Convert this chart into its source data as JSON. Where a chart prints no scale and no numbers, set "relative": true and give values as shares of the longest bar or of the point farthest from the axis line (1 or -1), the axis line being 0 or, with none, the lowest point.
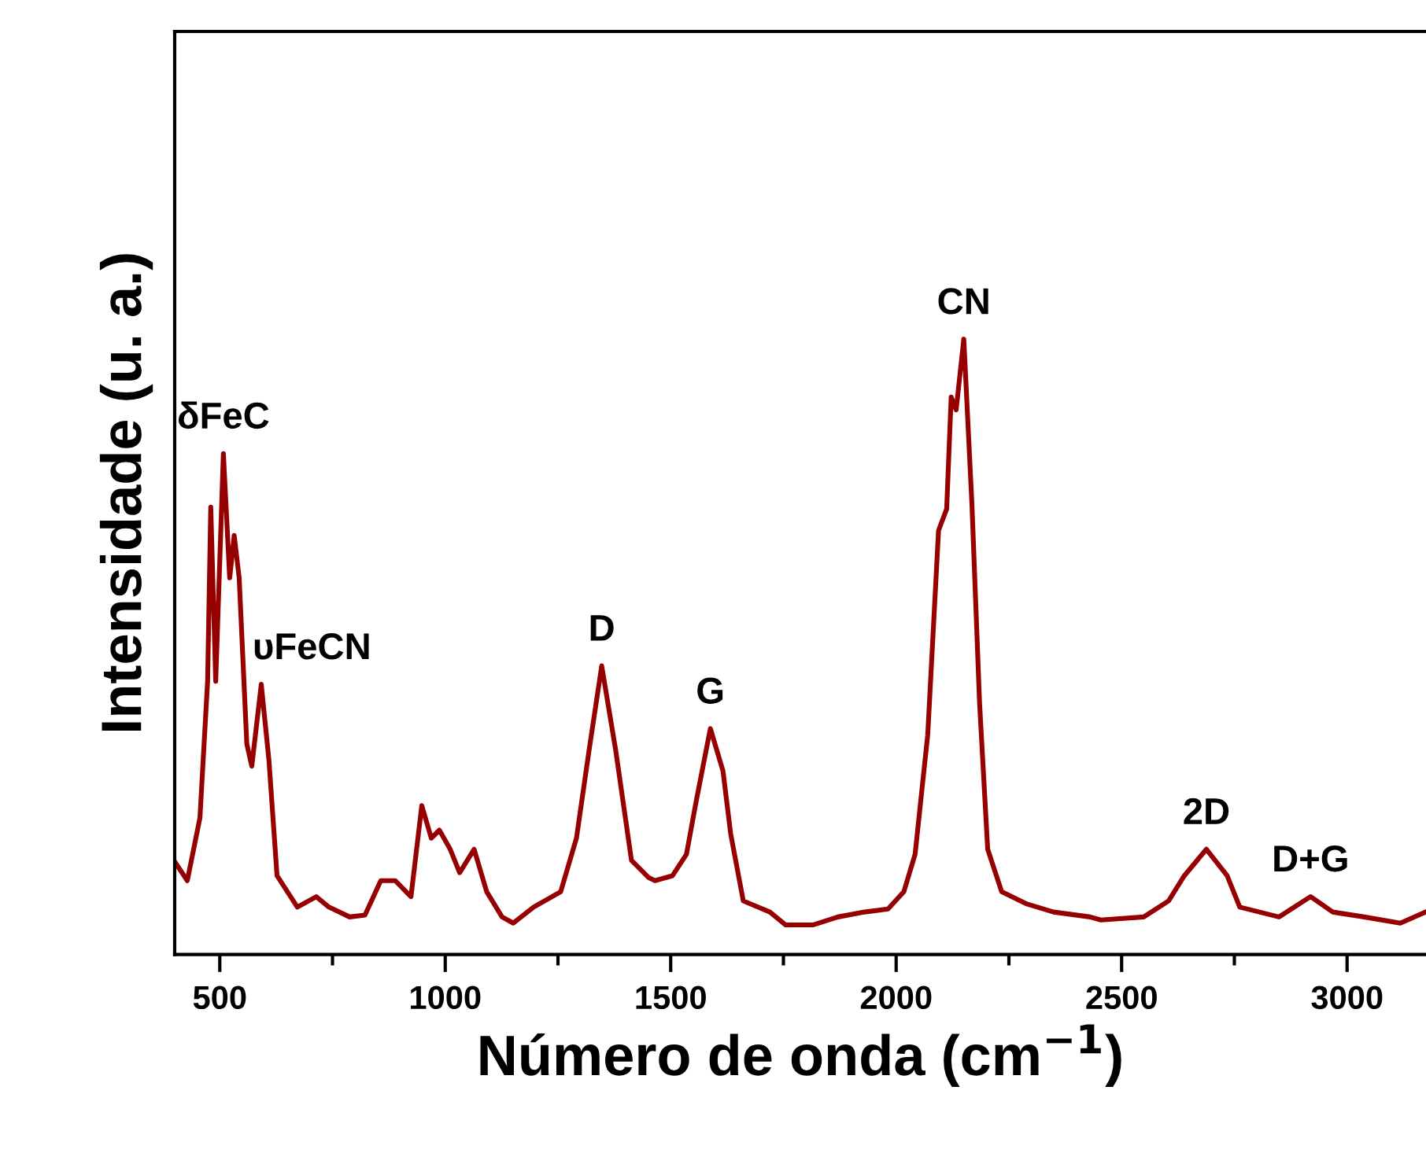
{
  "chart_data": {
    "type": "line",
    "relative": true,
    "xlabel": "Número de onda (cm$^{−1}$)",
    "ylabel": "Intensidade (u. a.)",
    "xlim": [
      400,
      3175
    ],
    "xticks": [
      500,
      {
        "value": 750,
        "label": null
      },
      1000,
      {
        "value": 1250,
        "label": null
      },
      1500,
      {
        "value": 1750,
        "label": null
      },
      2000,
      {
        "value": 2250,
        "label": null
      },
      2500,
      {
        "value": 2750,
        "label": null
      },
      3000
    ],
    "grid": false,
    "legend": false,
    "marker": "none",
    "line_style": "solid",
    "series": [
      {
        "color": "#960000",
        "x": [
          400,
          428,
          456,
          473,
          480,
          491,
          508,
          522,
          532,
          543,
          560,
          571,
          592,
          609,
          627,
          672,
          714,
          742,
          788,
          822,
          857,
          889,
          924,
          948,
          969,
          987,
          1011,
          1032,
          1064,
          1092,
          1126,
          1151,
          1196,
          1256,
          1291,
          1319,
          1347,
          1378,
          1413,
          1451,
          1465,
          1504,
          1535,
          1556,
          1588,
          1616,
          1633,
          1661,
          1720,
          1755,
          1815,
          1871,
          1930,
          1982,
          2017,
          2042,
          2070,
          2094,
          2112,
          2122,
          2133,
          2150,
          2168,
          2185,
          2203,
          2234,
          2290,
          2349,
          2430,
          2454,
          2549,
          2604,
          2639,
          2688,
          2734,
          2762,
          2849,
          2919,
          2968,
          3038,
          3118,
          3174
        ],
        "values": [
          0.151,
          0.12,
          0.222,
          0.444,
          0.727,
          0.444,
          0.814,
          0.612,
          0.681,
          0.612,
          0.342,
          0.306,
          0.439,
          0.316,
          0.128,
          0.077,
          0.094,
          0.077,
          0.061,
          0.064,
          0.12,
          0.12,
          0.094,
          0.242,
          0.189,
          0.202,
          0.171,
          0.133,
          0.171,
          0.102,
          0.061,
          0.051,
          0.077,
          0.102,
          0.189,
          0.332,
          0.469,
          0.332,
          0.153,
          0.125,
          0.12,
          0.128,
          0.163,
          0.247,
          0.367,
          0.298,
          0.196,
          0.087,
          0.069,
          0.048,
          0.048,
          0.061,
          0.069,
          0.074,
          0.102,
          0.163,
          0.357,
          0.689,
          0.724,
          0.906,
          0.885,
          1.0,
          0.732,
          0.408,
          0.171,
          0.102,
          0.082,
          0.069,
          0.061,
          0.056,
          0.061,
          0.087,
          0.128,
          0.171,
          0.128,
          0.077,
          0.061,
          0.094,
          0.069,
          0.061,
          0.051,
          0.069
        ]
      }
    ],
    "annotations": [
      {
        "text": "δFeC",
        "x": 508,
        "y": 0.814
      },
      {
        "text": "υFeCN",
        "x": 592,
        "y": 0.439
      },
      {
        "text": "D",
        "x": 1347,
        "y": 0.469
      },
      {
        "text": "G",
        "x": 1588,
        "y": 0.367
      },
      {
        "text": "CN",
        "x": 2150,
        "y": 1.0
      },
      {
        "text": "2D",
        "x": 2688,
        "y": 0.171
      },
      {
        "text": "D+G",
        "x": 2919,
        "y": 0.094
      }
    ]
  }
}
